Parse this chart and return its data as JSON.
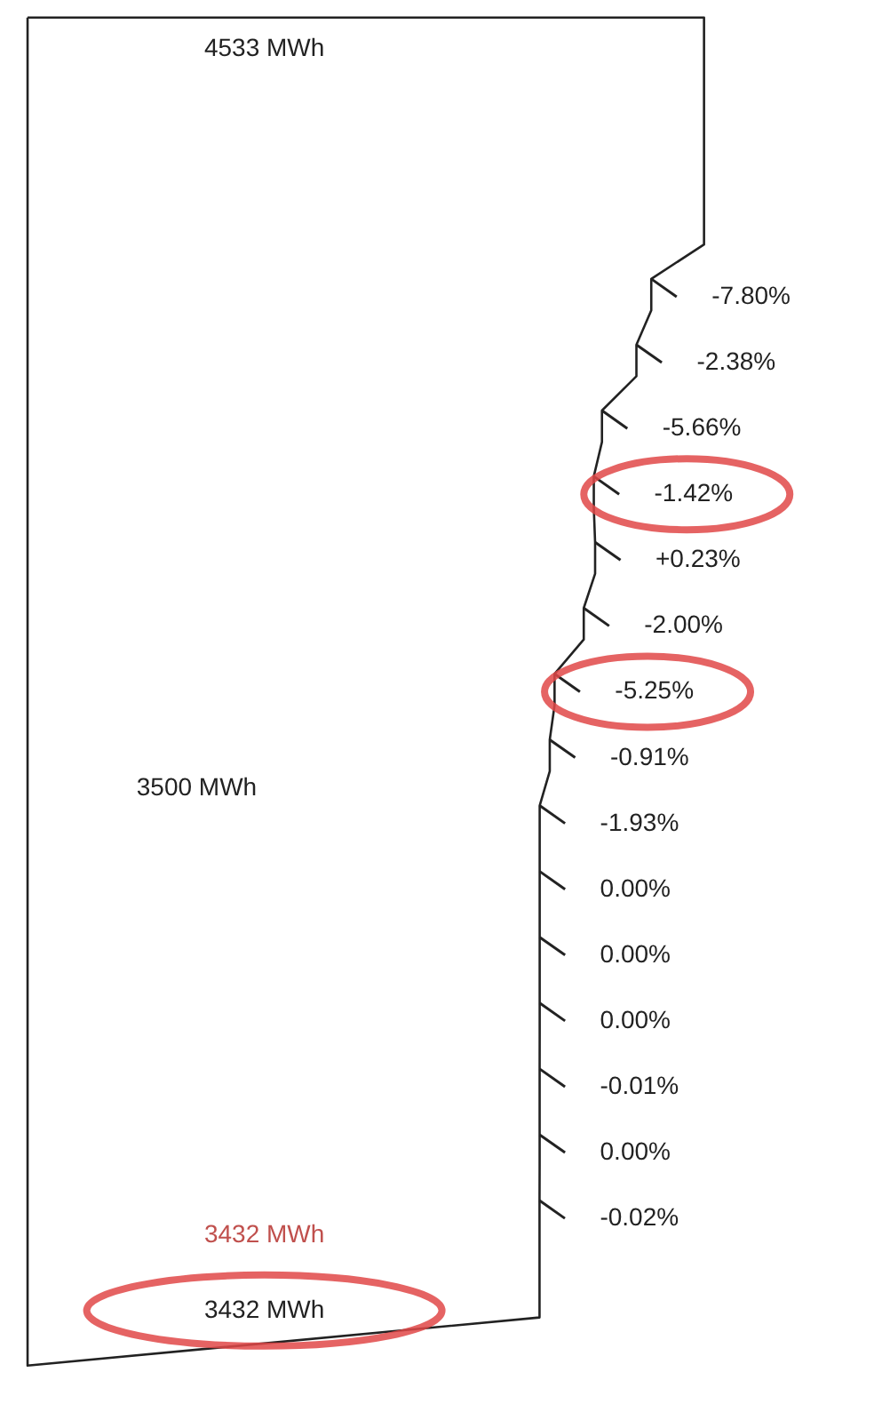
{
  "chart_data": {
    "type": "other",
    "values": [
      -7.8,
      -2.38,
      -5.66,
      -1.42,
      0.23,
      -2.0,
      -5.25,
      -0.91,
      -1.93,
      0.0,
      0.0,
      0.0,
      -0.01,
      0.0,
      -0.02
    ],
    "value_labels": [
      "-7.80%",
      "-2.38%",
      "-5.66%",
      "-1.42%",
      "+0.23%",
      "-2.00%",
      "-5.25%",
      "-0.91%",
      "-1.93%",
      "0.00%",
      "0.00%",
      "0.00%",
      "-0.01%",
      "0.00%",
      "-0.02%"
    ],
    "annotations": [
      "4533 MWh",
      "3500 MWh",
      "3432 MWh",
      "3432 MWh"
    ]
  }
}
